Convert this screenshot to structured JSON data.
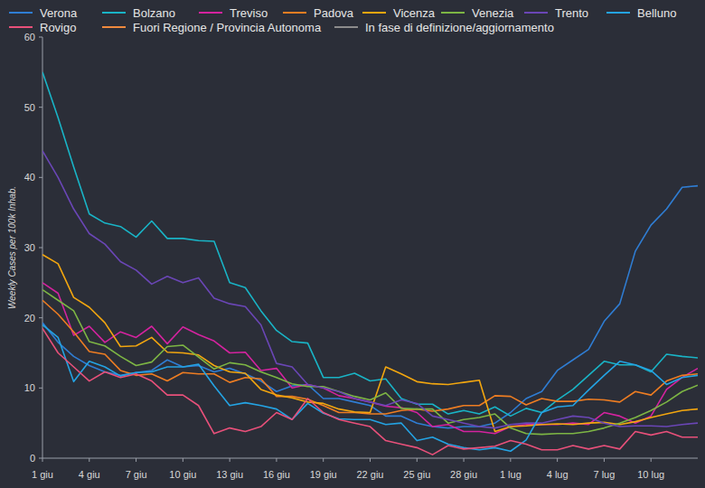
{
  "chart_data": {
    "type": "line",
    "y_label": "Weekly Cases per 100k Inhab.",
    "categories": [
      "1 giu",
      null,
      null,
      "4 giu",
      null,
      null,
      "7 giu",
      null,
      null,
      "10 giu",
      null,
      null,
      "13 giu",
      null,
      null,
      "16 giu",
      null,
      null,
      "19 giu",
      null,
      null,
      "22 giu",
      null,
      null,
      "25 giu",
      null,
      null,
      "28 giu",
      null,
      null,
      "1 lug",
      null,
      null,
      "4 lug",
      null,
      null,
      "7 lug",
      null,
      null,
      "10 lug",
      null,
      null,
      null
    ],
    "ylim": [
      0,
      60
    ],
    "yticks": [
      0,
      10,
      20,
      30,
      40,
      50,
      60
    ],
    "grid": false,
    "legend": "top",
    "series": [
      {
        "name": "Verona",
        "color": "#2f7dd3",
        "values": [
          19.3,
          16.5,
          14.5,
          13.2,
          12.3,
          11.8,
          12.2,
          12.5,
          14,
          13,
          13.2,
          12.3,
          12.8,
          12,
          11,
          9.5,
          10.3,
          10.5,
          8.5,
          8.5,
          8,
          7.5,
          6,
          6,
          5,
          4.5,
          4.3,
          4.5,
          4.5,
          5,
          6.5,
          8.5,
          9.5,
          12.5,
          14,
          15.5,
          19.5,
          22,
          29.5,
          33.2,
          35.5,
          38.6,
          38.8
        ]
      },
      {
        "name": "Bolzano",
        "color": "#19b4c6",
        "values": [
          55,
          48.5,
          41.5,
          34.8,
          33.5,
          33,
          31.5,
          33.8,
          31.3,
          31.3,
          31,
          30.9,
          25,
          24.3,
          21,
          18.2,
          16.6,
          16.4,
          11.5,
          11.5,
          12.1,
          11,
          11.3,
          8.5,
          7.7,
          7.7,
          6.3,
          6.8,
          6.3,
          7.3,
          6,
          7.1,
          6.5,
          8.3,
          9.8,
          11.8,
          13.8,
          13.3,
          13.3,
          12.3,
          14.8,
          14.5,
          14.3
        ]
      },
      {
        "name": "Treviso",
        "color": "#d4239f",
        "values": [
          25,
          23.5,
          17.5,
          18.8,
          16.5,
          18,
          17.2,
          18.8,
          16.3,
          18.7,
          17.6,
          16.7,
          15,
          15.1,
          12.5,
          12.8,
          10,
          10.5,
          10,
          8.9,
          8.5,
          8,
          7.4,
          7.2,
          6.5,
          4.5,
          4.8,
          3.8,
          3.8,
          3.5,
          4.5,
          4.8,
          4.8,
          4.8,
          5,
          4.8,
          6.5,
          6,
          5,
          6,
          9.8,
          11.5,
          12.8
        ]
      },
      {
        "name": "Padova",
        "color": "#ee7d22",
        "values": [
          22.5,
          20.5,
          18,
          15.2,
          14.8,
          12.5,
          11.8,
          12,
          11,
          12.2,
          12,
          12,
          10.8,
          11.5,
          11.3,
          8.8,
          8.8,
          8.4,
          7.5,
          6.5,
          6.5,
          6.3,
          6.3,
          6.8,
          7,
          6.7,
          7,
          7.5,
          7.5,
          8.9,
          8.8,
          7.6,
          8.5,
          8.1,
          8.1,
          8.4,
          8.3,
          8,
          9.5,
          9,
          11,
          11.8,
          12
        ]
      },
      {
        "name": "Vicenza",
        "color": "#f2a60f",
        "values": [
          29,
          27.7,
          22.9,
          21.5,
          19.3,
          15.9,
          16,
          17.2,
          15.1,
          15,
          14.7,
          13.2,
          12.3,
          12.1,
          9.8,
          9,
          8.6,
          8,
          7.8,
          7,
          6.6,
          6.5,
          13,
          12,
          10.9,
          10.6,
          10.5,
          10.8,
          11.1,
          3.8,
          4.5,
          4.6,
          4.8,
          4.9,
          4.8,
          5,
          5.1,
          4.8,
          5.2,
          5.8,
          6.3,
          6.8,
          7
        ]
      },
      {
        "name": "Venezia",
        "color": "#7db544",
        "values": [
          24,
          22.5,
          21,
          16.6,
          16,
          14.5,
          13.2,
          13.7,
          15.9,
          16.1,
          14.4,
          12.7,
          13.6,
          13.3,
          12.3,
          11.5,
          10.6,
          10.2,
          10.2,
          9.5,
          8.8,
          8.3,
          9.3,
          7.1,
          7,
          7,
          5,
          5.5,
          5.8,
          6.3,
          4.3,
          3.5,
          3.4,
          3.5,
          3.5,
          3.8,
          4.3,
          5,
          5.8,
          6.8,
          8,
          9.5,
          10.4
        ]
      },
      {
        "name": "Trento",
        "color": "#6a46b6",
        "values": [
          43.8,
          40,
          35.5,
          32,
          30.5,
          28,
          26.8,
          24.8,
          25.9,
          25,
          25.7,
          22.8,
          22,
          21.6,
          19,
          13.5,
          13,
          10.5,
          10,
          9.5,
          8.5,
          8,
          7.5,
          8.3,
          7.8,
          6,
          5.5,
          5,
          4.5,
          4.3,
          4.8,
          5,
          5,
          5.5,
          6,
          5.8,
          5,
          4.5,
          4.6,
          4.6,
          4.5,
          4.8,
          5
        ]
      },
      {
        "name": "Belluno",
        "color": "#24a3e3",
        "values": [
          19,
          17.2,
          10.9,
          13.8,
          13,
          11.7,
          12.2,
          12.3,
          13,
          13,
          13.4,
          10.3,
          7.5,
          7.9,
          7.5,
          7,
          5.5,
          7.8,
          6.4,
          5.6,
          5.5,
          5.5,
          4.8,
          5,
          2.5,
          3,
          2,
          1.5,
          1.2,
          1.5,
          1,
          2.6,
          6.5,
          7.3,
          7.5,
          9.7,
          11.8,
          13.8,
          13.3,
          12.5,
          10.5,
          11.5,
          11.8
        ]
      },
      {
        "name": "Rovigo",
        "color": "#e8507a",
        "values": [
          18.5,
          15,
          13,
          11,
          12.3,
          11.5,
          12,
          11,
          9,
          9,
          7.5,
          3.5,
          4.3,
          3.8,
          4.5,
          6.5,
          5.5,
          8.5,
          6.5,
          5.5,
          5,
          4.5,
          2.5,
          2,
          1.5,
          0.5,
          1.8,
          1.3,
          1.5,
          1.7,
          2.5,
          2,
          1.2,
          1.2,
          1.8,
          1.3,
          1.8,
          1.3,
          3.8,
          3.3,
          3.8,
          3,
          3
        ]
      },
      {
        "name": "Fuori Regione / Provincia Autonoma",
        "color": "#f08a3e",
        "values": [
          null,
          null,
          null,
          null,
          null,
          null,
          null,
          null,
          null,
          null,
          null,
          null,
          null,
          null,
          null,
          null,
          null,
          null,
          null,
          null,
          null,
          null,
          null,
          null,
          null,
          null,
          null,
          null,
          null,
          null,
          null,
          null,
          null,
          null,
          null,
          null,
          null,
          null,
          null,
          null,
          null,
          null,
          null
        ]
      },
      {
        "name": "In fase di definizione/aggiornamento",
        "color": "#8c8c8c",
        "values": [
          null,
          null,
          null,
          null,
          null,
          null,
          null,
          null,
          null,
          null,
          null,
          null,
          null,
          null,
          null,
          null,
          null,
          null,
          null,
          null,
          null,
          null,
          null,
          null,
          null,
          null,
          null,
          null,
          null,
          null,
          null,
          null,
          null,
          null,
          null,
          null,
          null,
          null,
          null,
          null,
          null,
          null,
          null
        ]
      }
    ]
  }
}
